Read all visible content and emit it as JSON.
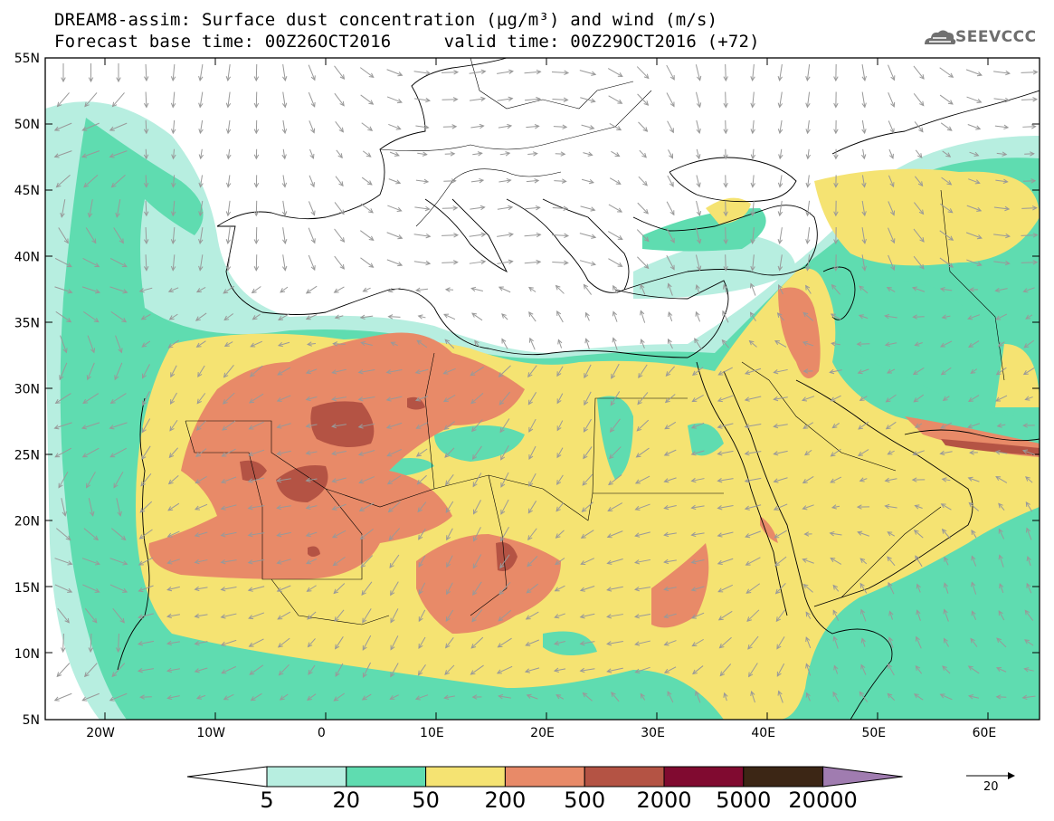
{
  "title": {
    "line1": "DREAM8-assim: Surface dust concentration (µg/m³) and wind (m/s)",
    "line2": "Forecast base time: 00Z26OCT2016     valid time: 00Z29OCT2016 (+72)"
  },
  "logo": {
    "text": "SEEVCCC",
    "icon": "cloud-icon"
  },
  "map": {
    "extent": {
      "lon": [
        -25,
        65
      ],
      "lat": [
        5,
        55
      ]
    },
    "lat_ticks": [
      "55N",
      "50N",
      "45N",
      "40N",
      "35N",
      "30N",
      "25N",
      "20N",
      "15N",
      "10N",
      "5N"
    ],
    "lon_ticks": [
      "20W",
      "10W",
      "0",
      "10E",
      "20E",
      "30E",
      "40E",
      "50E",
      "60E"
    ]
  },
  "colorbar": {
    "labels": [
      "5",
      "20",
      "50",
      "200",
      "500",
      "2000",
      "5000",
      "20000"
    ],
    "colors": [
      "#ffffff",
      "#b7eee0",
      "#5fdcb0",
      "#f5e372",
      "#e88a68",
      "#b45344",
      "#800a30",
      "#3c2615",
      "#a07cb0"
    ]
  },
  "wind_reference": {
    "label": "20"
  }
}
